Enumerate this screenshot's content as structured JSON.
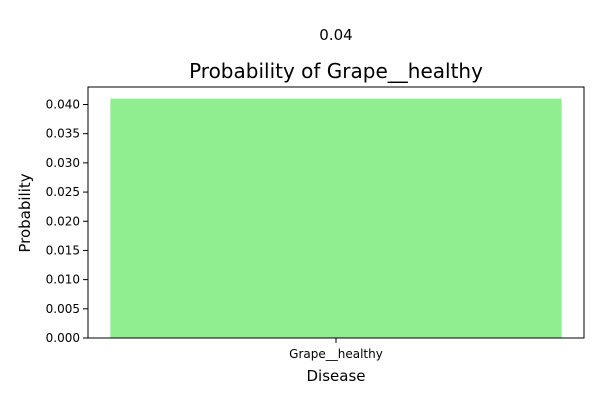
{
  "chart_data": {
    "type": "bar",
    "title": "Probability of Grape__healthy",
    "annotation": "0.04",
    "xlabel": "Disease",
    "ylabel": "Probability",
    "categories": [
      "Grape__healthy"
    ],
    "values": [
      0.041
    ],
    "ylim": [
      0,
      0.043
    ],
    "yticks": [
      0.0,
      0.005,
      0.01,
      0.015,
      0.02,
      0.025,
      0.03,
      0.035,
      0.04
    ],
    "ytick_labels": [
      "0.000",
      "0.005",
      "0.010",
      "0.015",
      "0.020",
      "0.025",
      "0.030",
      "0.035",
      "0.040"
    ],
    "grid": false,
    "bar_color": "#90ee90"
  }
}
